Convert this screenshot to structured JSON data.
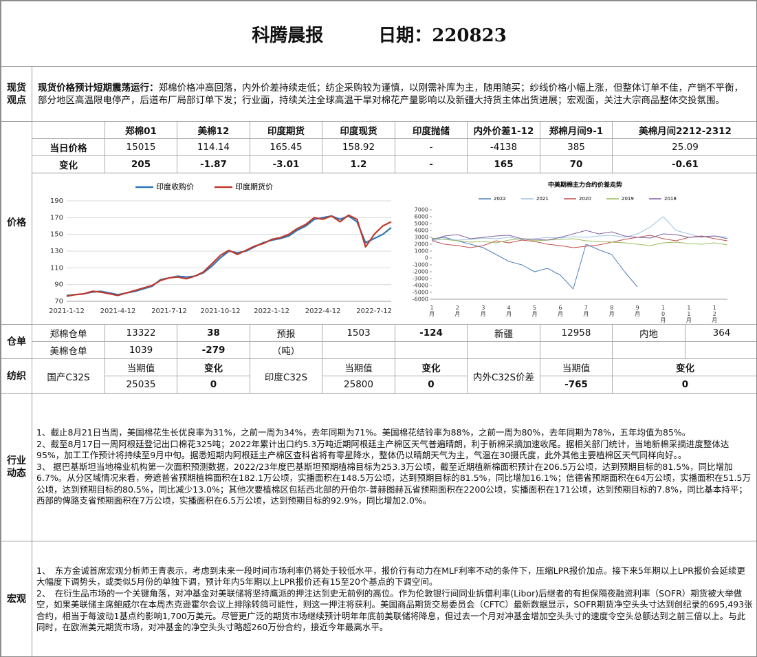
{
  "header": {
    "title": "科腾晨报",
    "date": "日期：220823"
  },
  "spot": {
    "label": "现货观点",
    "lead": "现货价格预计短期震荡运行：",
    "text": "郑棉价格冲高回落，内外价差持续走低；纺企采购较为谨慎，以刚需补库为主，随用随买；纱线价格小幅上涨，但整体订单不佳，产销不平衡，部分地区高温限电停产，后道布厂局部订单下发；行业面，持续关注全球高温干旱对棉花产量影响以及新疆大持货主体出货进展；宏观面，关注大宗商品整体交投氛围。"
  },
  "price_table": {
    "label": "价格",
    "columns": [
      "郑棉01",
      "美棉12",
      "印度期货",
      "印度现货",
      "印度抛储",
      "内外价差1-12",
      "郑棉月间9-1",
      "美棉月间2212-2312"
    ],
    "rows": [
      {
        "name": "当日价格",
        "values": [
          15015,
          114.14,
          165.45,
          158.92,
          "-",
          -4138,
          385,
          25.09
        ]
      },
      {
        "name": "变化",
        "values": [
          205,
          -1.87,
          -3.01,
          1.2,
          "-",
          165,
          70,
          -0.61
        ]
      }
    ]
  },
  "warehouse": {
    "label": "仓单",
    "rows": [
      [
        "郑棉仓单",
        13322,
        38,
        "预报",
        1503,
        -124,
        "新疆",
        12958,
        "内地",
        364
      ],
      [
        "美棉仓单",
        1039,
        -279,
        "（吨）"
      ]
    ]
  },
  "textile": {
    "label": "纺织",
    "groups": [
      {
        "name": "国产C32S",
        "headers": [
          "当期值",
          "变化"
        ],
        "values": [
          25035,
          0
        ]
      },
      {
        "name": "印度C32S",
        "headers": [
          "当期值",
          "变化"
        ],
        "values": [
          25800,
          0
        ]
      },
      {
        "name": "内外C32S价差",
        "headers": [
          "当期值",
          "变化"
        ],
        "values": [
          -765,
          0
        ]
      }
    ]
  },
  "industry": {
    "label": "行业动态",
    "paragraphs": [
      "1、截止8月21日当周，美国棉花生长优良率为31%，之前一周为34%，去年同期为71%。美国棉花结铃率为88%，之前一周为80%，去年同期为78%，五年均值为85%。",
      "2、截至8月17日一周阿根廷登记出口棉花325吨；2022年累计出口约5.3万吨近期阿根廷主产棉区天气普遍晴朗，利于新棉采摘加速收尾。据相关部门统计，当地新棉采摘进度整体达95%，加工工作预计将持续至9月中旬。据悉短期内阿根廷主产棉区查科省将有零星降水，整体仍以晴朗天气为主，气温在30摄氏度，此外其他主要植棉区天气同样向好。。",
      "3、 据巴基斯坦当地棉业机构第一次面积预测数据，2022/23年度巴基斯坦预期植棉目标为253.3万公顷，截至近期植新棉面积预计在206.5万公顷，达到预期目标的81.5%，同比增加6.7%。从分区域情况来看，旁遮普省预期植棉面积在182.1万公顷，实播面积在148.5万公顷，达到预期目标的81.5%，同比增加16.1%；信德省预期面积在64万公顷，实播面积在51.5万公顷，达到预期目标的80.5%，同比减少13.0%；其他次要植棉区包括西北部的开伯尔-普赫图赫瓦省预期面积在2200公顷，实播面积在171公顷，达到预期目标的7.8%，同比基本持平；西部的俾路支省预期面积在7万公顷，实播面积在6.5万公顷，达到预期目标的92.9%，同比增加2.0%。"
    ]
  },
  "macro": {
    "label": "宏观",
    "paragraphs": [
      "1、　东方金诚首席宏观分析师王青表示，考虑到未来一段时间市场利率仍将处于较低水平，报价行有动力在MLF利率不动的条件下，压缩LPR报价加点。接下来5年期以上LPR报价会延续更大幅度下调势头，或类似5月份的单独下调，预计年内5年期以上LPR报价还有15至20个基点的下调空间。",
      "2、　在衍生品市场的一个关键角落，对冲基金对美联储将坚持鹰派的押注达到史无前例的高位。作为伦敦银行间同业拆借利率(Libor)后继者的有担保隔夜融资利率（SOFR）期货被大举做空，如果美联储主席鲍威尔在本周杰克逊霍尔会议上排除转鸽可能性，则这一押注将获利。美国商品期货交易委员会（CFTC）最新数据显示，SOFR期货净空头头寸达到创纪录的695,493张合约，相当于每波动1基点约影响1,700万美元。尽管更广泛的期货市场继续预计明年年底前美联储将降息，但过去一个月对冲基金增加空头头寸的速度令空头总额达到之前三倍以上。与此同时，在欧洲美元期货市场，对冲基金的净空头头寸略超260万份合约，接近今年最高水平。"
    ]
  },
  "chart_data": [
    {
      "type": "line",
      "categories": [
        "2021-1-12",
        null,
        null,
        null,
        null,
        null,
        "2021-4-12",
        null,
        null,
        null,
        null,
        null,
        "2021-7-12",
        null,
        null,
        null,
        null,
        null,
        "2021-10-12",
        null,
        null,
        null,
        null,
        null,
        "2022-1-12",
        null,
        null,
        null,
        null,
        null,
        "2022-4-12",
        null,
        null,
        null,
        null,
        null,
        "2022-7-12",
        null,
        null
      ],
      "series": [
        {
          "name": "印度收购价",
          "color": "#2e75b6",
          "values": [
            77,
            78,
            79,
            81,
            82,
            80,
            78,
            80,
            82,
            85,
            88,
            96,
            98,
            100,
            99,
            100,
            104,
            112,
            122,
            130,
            128,
            130,
            135,
            140,
            143,
            145,
            148,
            155,
            160,
            168,
            170,
            172,
            168,
            172,
            165,
            140,
            145,
            150,
            158
          ]
        },
        {
          "name": "印度期货价",
          "color": "#c0392b",
          "values": [
            76,
            78,
            79,
            82,
            81,
            79,
            77,
            80,
            83,
            86,
            89,
            95,
            98,
            99,
            97,
            100,
            105,
            115,
            125,
            131,
            126,
            131,
            136,
            139,
            144,
            146,
            150,
            157,
            162,
            170,
            168,
            172,
            165,
            173,
            168,
            135,
            150,
            160,
            165
          ]
        }
      ],
      "ylim": [
        70,
        190
      ],
      "yticks": [
        70,
        90,
        110,
        130,
        150,
        170,
        190
      ],
      "grid": true,
      "legend": "top"
    },
    {
      "type": "line",
      "title": "中美期棉主力合约价差走势",
      "categories": [
        "1月",
        null,
        "2月",
        null,
        "3月",
        null,
        "4月",
        null,
        "5月",
        null,
        "6月",
        null,
        "7月",
        null,
        "8月",
        null,
        "9月",
        null,
        "10月",
        null,
        "11月",
        null,
        "12月",
        null
      ],
      "series": [
        {
          "name": "2022",
          "color": "#4f81bd",
          "values": [
            2800,
            3000,
            2500,
            2000,
            1500,
            500,
            -500,
            -1000,
            -2000,
            -1500,
            -2500,
            -4500,
            2000,
            1200,
            500,
            -2000,
            -4200,
            null,
            null,
            null,
            null,
            null,
            null,
            null
          ]
        },
        {
          "name": "2021",
          "color": "#9dc3e6",
          "values": [
            2500,
            2800,
            2600,
            2700,
            2900,
            2800,
            3000,
            2700,
            2800,
            3000,
            2900,
            3100,
            3000,
            3200,
            3300,
            3000,
            3500,
            4500,
            6000,
            4000,
            3500,
            3000,
            3200,
            3000
          ]
        },
        {
          "name": "2020",
          "color": "#c0504d",
          "values": [
            2500,
            2000,
            1800,
            1500,
            1800,
            2500,
            2200,
            2600,
            2400,
            2000,
            1800,
            1500,
            1700,
            1900,
            2300,
            2700,
            3000,
            3300,
            2800,
            2500,
            3000,
            3200,
            2800,
            2500
          ]
        },
        {
          "name": "2019",
          "color": "#9bbb59",
          "values": [
            2900,
            2700,
            2500,
            2300,
            2400,
            2200,
            2600,
            2800,
            2500,
            2600,
            2700,
            2800,
            2500,
            2400,
            2300,
            2200,
            2000,
            1800,
            2200,
            2300,
            2100,
            2000,
            2200,
            1900
          ]
        },
        {
          "name": "2018",
          "color": "#8064a2",
          "values": [
            2600,
            3200,
            3400,
            2800,
            3000,
            3200,
            3300,
            2800,
            2700,
            2600,
            3000,
            3500,
            4000,
            3500,
            3800,
            3200,
            3000,
            2900,
            3500,
            3400,
            3000,
            3100,
            3200,
            2800
          ]
        }
      ],
      "ylim": [
        -6000,
        7000
      ],
      "yticks": [
        -6000,
        -5000,
        -4000,
        -3000,
        -2000,
        -1000,
        0,
        1000,
        2000,
        3000,
        4000,
        5000,
        6000,
        7000
      ],
      "grid": false,
      "legend": "top"
    }
  ]
}
